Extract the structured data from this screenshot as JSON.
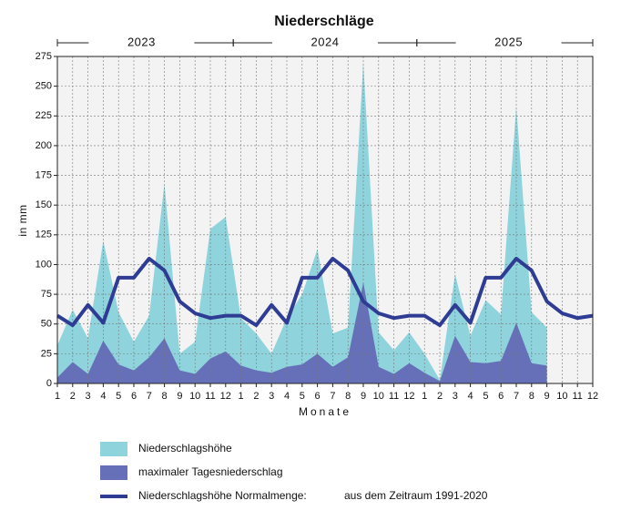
{
  "chart_data": {
    "type": "area",
    "title": "Niederschläge",
    "years": [
      "2023",
      "2024",
      "2025"
    ],
    "categories": [
      "1",
      "2",
      "3",
      "4",
      "5",
      "6",
      "7",
      "8",
      "9",
      "10",
      "11",
      "12",
      "1",
      "2",
      "3",
      "4",
      "5",
      "6",
      "7",
      "8",
      "9",
      "10",
      "11",
      "12",
      "1",
      "2",
      "3",
      "4",
      "5",
      "6",
      "7",
      "8",
      "9",
      "10",
      "11",
      "12"
    ],
    "x_label": "Monate",
    "y_label": "in mm",
    "ylim": [
      0,
      275
    ],
    "yticks": [
      0,
      25,
      50,
      75,
      100,
      125,
      150,
      175,
      200,
      225,
      250,
      275
    ],
    "grid": true,
    "series": [
      {
        "name": "Niederschlagshöhe",
        "kind": "area",
        "color": "#8fd3dc",
        "values": [
          32,
          62,
          38,
          120,
          60,
          35,
          57,
          168,
          25,
          35,
          130,
          140,
          55,
          42,
          25,
          55,
          75,
          113,
          42,
          47,
          270,
          43,
          28,
          43,
          25,
          3,
          92,
          40,
          70,
          58,
          233,
          60,
          47,
          null,
          null,
          null
        ]
      },
      {
        "name": "maximaler Tagesniederschlag",
        "kind": "area",
        "color": "#6670b8",
        "values": [
          5,
          18,
          8,
          36,
          16,
          11,
          22,
          38,
          11,
          8,
          21,
          27,
          15,
          11,
          9,
          14,
          16,
          25,
          14,
          22,
          85,
          14,
          8,
          17,
          9,
          2,
          40,
          18,
          17,
          19,
          51,
          17,
          15,
          null,
          null,
          null
        ]
      },
      {
        "name": "Niederschlagshöhe Normalmenge:",
        "kind": "line",
        "color": "#2e3c94",
        "values": [
          57,
          49,
          66,
          51,
          89,
          89,
          105,
          95,
          69,
          59,
          55,
          57,
          57,
          49,
          66,
          51,
          89,
          89,
          105,
          95,
          69,
          59,
          55,
          57,
          57,
          49,
          66,
          51,
          89,
          89,
          105,
          95,
          69,
          59,
          55,
          57
        ]
      }
    ],
    "legend_note": "aus dem Zeitraum 1991-2020"
  }
}
